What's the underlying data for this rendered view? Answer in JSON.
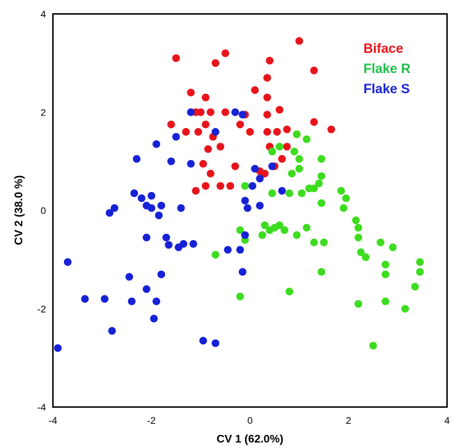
{
  "chart_data": {
    "type": "scatter",
    "xlabel": "CV 1 (62.0%)",
    "ylabel": "CV 2 (38.0 %)",
    "xlim": [
      -4,
      4
    ],
    "ylim": [
      -4,
      4
    ],
    "x_ticks": [
      "-4",
      "-2",
      "0",
      "2",
      "4"
    ],
    "y_ticks": [
      "4",
      "2",
      "0",
      "-2",
      "-4"
    ],
    "grid": false,
    "legend_position": "top-right",
    "series": [
      {
        "name": "Biface",
        "color": "#e8141b",
        "points": [
          [
            -1.5,
            3.1
          ],
          [
            -0.7,
            3.0
          ],
          [
            -0.5,
            3.2
          ],
          [
            0.4,
            3.05
          ],
          [
            1.0,
            3.45
          ],
          [
            1.3,
            2.85
          ],
          [
            0.35,
            2.7
          ],
          [
            -1.2,
            2.4
          ],
          [
            -0.9,
            2.3
          ],
          [
            0.1,
            2.45
          ],
          [
            0.35,
            2.3
          ],
          [
            -1.6,
            1.75
          ],
          [
            -1.3,
            1.6
          ],
          [
            -1.1,
            2.0
          ],
          [
            -1.0,
            2.0
          ],
          [
            -0.8,
            2.0
          ],
          [
            -0.5,
            2.0
          ],
          [
            -0.1,
            1.95
          ],
          [
            0.35,
            1.95
          ],
          [
            0.6,
            2.05
          ],
          [
            -0.2,
            1.75
          ],
          [
            0.0,
            1.6
          ],
          [
            -1.05,
            1.6
          ],
          [
            -0.9,
            1.75
          ],
          [
            -0.75,
            1.5
          ],
          [
            0.35,
            1.6
          ],
          [
            0.55,
            1.6
          ],
          [
            0.75,
            1.65
          ],
          [
            0.95,
            1.55
          ],
          [
            1.3,
            1.8
          ],
          [
            1.65,
            1.65
          ],
          [
            -0.85,
            1.25
          ],
          [
            -0.6,
            1.3
          ],
          [
            0.4,
            1.3
          ],
          [
            0.75,
            1.3
          ],
          [
            0.65,
            1.05
          ],
          [
            0.5,
            0.9
          ],
          [
            0.2,
            0.8
          ],
          [
            -0.95,
            0.95
          ],
          [
            -0.8,
            0.75
          ],
          [
            -0.3,
            0.9
          ],
          [
            -1.1,
            0.4
          ],
          [
            -0.9,
            0.5
          ],
          [
            -0.6,
            0.5
          ],
          [
            -0.4,
            0.5
          ],
          [
            0.3,
            0.75
          ]
        ]
      },
      {
        "name": "Flake R",
        "color": "#3ddc1f",
        "points": [
          [
            0.95,
            1.55
          ],
          [
            1.15,
            1.45
          ],
          [
            0.6,
            1.3
          ],
          [
            0.9,
            1.2
          ],
          [
            0.45,
            1.2
          ],
          [
            1.0,
            1.05
          ],
          [
            1.0,
            0.85
          ],
          [
            1.45,
            1.05
          ],
          [
            0.85,
            0.75
          ],
          [
            1.45,
            0.7
          ],
          [
            1.4,
            0.55
          ],
          [
            1.3,
            0.45
          ],
          [
            1.05,
            0.35
          ],
          [
            1.2,
            0.45
          ],
          [
            0.45,
            0.35
          ],
          [
            0.8,
            0.35
          ],
          [
            -0.1,
            0.5
          ],
          [
            1.45,
            0.15
          ],
          [
            1.85,
            0.4
          ],
          [
            1.95,
            0.25
          ],
          [
            1.9,
            0.05
          ],
          [
            2.15,
            -0.2
          ],
          [
            2.2,
            -0.35
          ],
          [
            2.2,
            -0.55
          ],
          [
            1.15,
            -0.35
          ],
          [
            0.95,
            -0.5
          ],
          [
            0.5,
            -0.35
          ],
          [
            0.3,
            -0.3
          ],
          [
            0.4,
            -0.4
          ],
          [
            0.6,
            -0.3
          ],
          [
            0.7,
            -0.4
          ],
          [
            0.25,
            -0.5
          ],
          [
            -0.2,
            -0.4
          ],
          [
            -0.1,
            -0.6
          ],
          [
            -0.7,
            -0.9
          ],
          [
            1.3,
            -0.65
          ],
          [
            1.5,
            -0.65
          ],
          [
            2.25,
            -0.85
          ],
          [
            2.35,
            -0.95
          ],
          [
            2.65,
            -0.65
          ],
          [
            2.9,
            -0.75
          ],
          [
            3.45,
            -1.05
          ],
          [
            3.45,
            -1.25
          ],
          [
            2.75,
            -1.1
          ],
          [
            2.75,
            -1.3
          ],
          [
            1.45,
            -1.25
          ],
          [
            3.35,
            -1.55
          ],
          [
            3.15,
            -2.0
          ],
          [
            2.75,
            -1.85
          ],
          [
            2.2,
            -1.9
          ],
          [
            0.8,
            -1.65
          ],
          [
            -0.2,
            -1.75
          ],
          [
            2.5,
            -2.75
          ]
        ]
      },
      {
        "name": "Flake S",
        "color": "#1722d6",
        "points": [
          [
            -1.2,
            2.0
          ],
          [
            -0.3,
            2.0
          ],
          [
            -0.15,
            1.95
          ],
          [
            -0.7,
            1.6
          ],
          [
            -1.5,
            1.5
          ],
          [
            -1.9,
            1.35
          ],
          [
            -2.3,
            1.05
          ],
          [
            -1.6,
            1.0
          ],
          [
            -1.2,
            0.95
          ],
          [
            0.1,
            0.85
          ],
          [
            0.45,
            0.9
          ],
          [
            0.2,
            0.65
          ],
          [
            0.05,
            0.5
          ],
          [
            0.65,
            0.4
          ],
          [
            -0.1,
            0.2
          ],
          [
            -0.05,
            0.05
          ],
          [
            -2.35,
            0.35
          ],
          [
            -2.2,
            0.25
          ],
          [
            -2.0,
            0.3
          ],
          [
            -2.1,
            0.1
          ],
          [
            -2.0,
            0.05
          ],
          [
            -1.8,
            0.1
          ],
          [
            -1.85,
            -0.1
          ],
          [
            -1.4,
            0.05
          ],
          [
            -2.75,
            0.05
          ],
          [
            -2.85,
            -0.05
          ],
          [
            0.2,
            0.1
          ],
          [
            -0.1,
            -0.5
          ],
          [
            -2.1,
            -0.55
          ],
          [
            -1.7,
            -0.55
          ],
          [
            -1.65,
            -0.7
          ],
          [
            -1.45,
            -0.75
          ],
          [
            -1.35,
            -0.68
          ],
          [
            -1.15,
            -0.68
          ],
          [
            -0.45,
            -0.8
          ],
          [
            -0.2,
            -0.8
          ],
          [
            -0.15,
            -1.25
          ],
          [
            -3.7,
            -1.05
          ],
          [
            -1.8,
            -1.3
          ],
          [
            -2.45,
            -1.35
          ],
          [
            -2.1,
            -1.6
          ],
          [
            -1.9,
            -1.85
          ],
          [
            -2.4,
            -1.85
          ],
          [
            -3.35,
            -1.8
          ],
          [
            -2.95,
            -1.8
          ],
          [
            -1.95,
            -2.2
          ],
          [
            -2.8,
            -2.45
          ],
          [
            -0.95,
            -2.65
          ],
          [
            -0.7,
            -2.7
          ],
          [
            -3.9,
            -2.8
          ]
        ]
      }
    ]
  }
}
